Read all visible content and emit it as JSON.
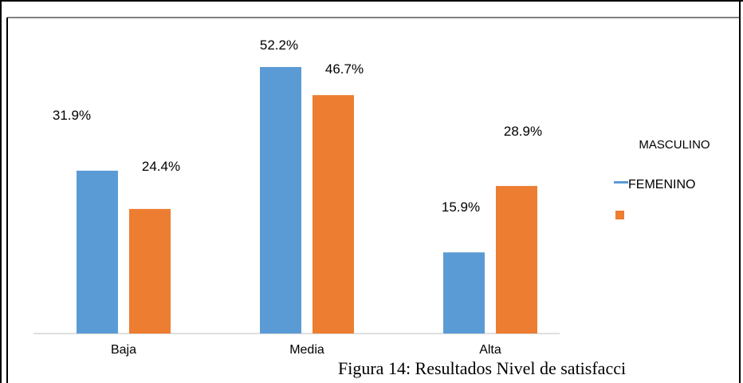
{
  "caption": "Figura 14: Resultados Nivel de satisfacci",
  "colors": {
    "masculino": "#5b9bd5",
    "femenino": "#ed7d31",
    "frame": "#000000",
    "axis": "#bfbfbf"
  },
  "chart_data": {
    "type": "bar",
    "categories": [
      "Baja",
      "Media",
      "Alta"
    ],
    "series": [
      {
        "name": "MASCULINO",
        "values": [
          31.9,
          52.2,
          15.9
        ],
        "labels": [
          "31.9%",
          "52.2%",
          "15.9%"
        ]
      },
      {
        "name": "FEMENINO",
        "values": [
          24.4,
          46.7,
          28.9
        ],
        "labels": [
          "24.4%",
          "46.7%",
          "28.9%"
        ]
      }
    ],
    "title": "",
    "xlabel": "",
    "ylabel": "",
    "ylim": [
      0,
      55
    ],
    "grid": false,
    "legend": "right"
  }
}
